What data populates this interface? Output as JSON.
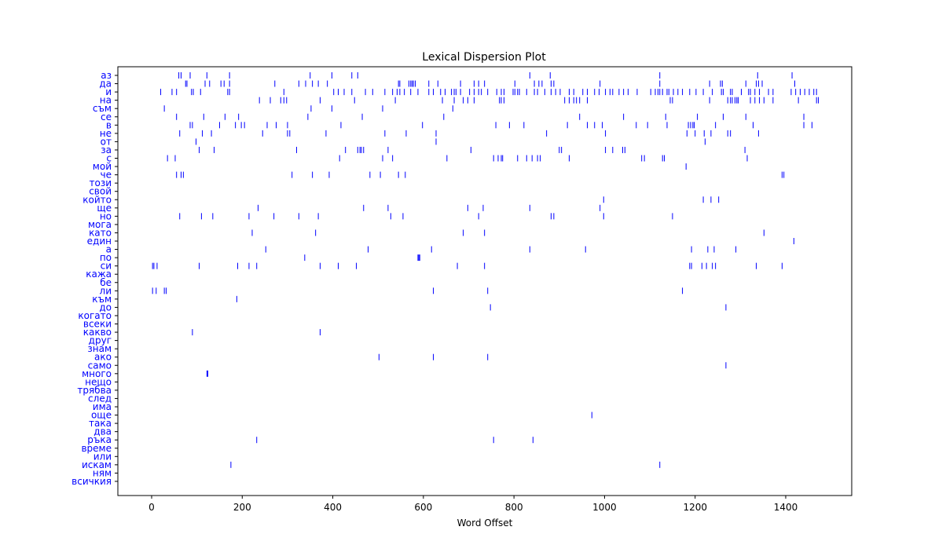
{
  "chart_data": {
    "type": "scatter",
    "title": "Lexical Dispersion Plot",
    "xlabel": "Word Offset",
    "ylabel": "",
    "xlim": [
      -75,
      1550
    ],
    "x_ticks": [
      0,
      200,
      400,
      600,
      800,
      1000,
      1200,
      1400
    ],
    "grid": false,
    "legend": "none",
    "mark_color": "#0000ff",
    "words": [
      "аз",
      "да",
      "и",
      "на",
      "съм",
      "се",
      "в",
      "не",
      "от",
      "за",
      "с",
      "мой",
      "че",
      "този",
      "свой",
      "който",
      "ще",
      "но",
      "мога",
      "като",
      "един",
      "а",
      "по",
      "си",
      "кажа",
      "бе",
      "ли",
      "към",
      "до",
      "когато",
      "всеки",
      "какво",
      "друг",
      "знам",
      "ако",
      "само",
      "много",
      "нещо",
      "трябва",
      "след",
      "има",
      "още",
      "така",
      "два",
      "ръка",
      "време",
      "или",
      "искам",
      "ням",
      "всичкия"
    ],
    "series": [
      {
        "word": "аз",
        "x": [
          60,
          65,
          85,
          122,
          172,
          350,
          398,
          442,
          455,
          835,
          880,
          1122,
          1338,
          1414
        ]
      },
      {
        "word": "да",
        "x": [
          75,
          78,
          118,
          128,
          153,
          160,
          172,
          272,
          325,
          340,
          355,
          368,
          388,
          545,
          548,
          568,
          572,
          575,
          578,
          582,
          612,
          632,
          682,
          712,
          722,
          735,
          802,
          845,
          855,
          862,
          882,
          888,
          990,
          1122,
          1232,
          1256,
          1260,
          1312,
          1335,
          1340,
          1348,
          1420
        ]
      },
      {
        "word": "и",
        "x": [
          20,
          45,
          55,
          88,
          92,
          108,
          168,
          172,
          292,
          402,
          412,
          425,
          442,
          472,
          488,
          515,
          532,
          542,
          548,
          558,
          572,
          588,
          612,
          622,
          638,
          648,
          662,
          668,
          672,
          682,
          702,
          712,
          722,
          728,
          742,
          762,
          772,
          778,
          798,
          802,
          808,
          812,
          828,
          845,
          852,
          868,
          882,
          892,
          902,
          922,
          932,
          952,
          962,
          978,
          988,
          1002,
          1012,
          1018,
          1032,
          1042,
          1052,
          1072,
          1102,
          1112,
          1118,
          1122,
          1128,
          1138,
          1142,
          1152,
          1162,
          1172,
          1188,
          1202,
          1218,
          1238,
          1258,
          1262,
          1278,
          1282,
          1302,
          1318,
          1322,
          1332,
          1342,
          1362,
          1372,
          1412,
          1422,
          1432,
          1442,
          1452,
          1462,
          1468
        ]
      },
      {
        "word": "на",
        "x": [
          238,
          262,
          285,
          292,
          298,
          372,
          448,
          538,
          642,
          668,
          688,
          698,
          712,
          768,
          772,
          778,
          912,
          922,
          932,
          938,
          945,
          962,
          1145,
          1150,
          1232,
          1272,
          1278,
          1282,
          1288,
          1292,
          1295,
          1322,
          1332,
          1342,
          1352,
          1372,
          1428,
          1468,
          1472
        ]
      },
      {
        "word": "съм",
        "x": [
          28,
          352,
          398,
          510,
          665
        ]
      },
      {
        "word": "се",
        "x": [
          55,
          115,
          162,
          192,
          345,
          465,
          645,
          945,
          1042,
          1135,
          1205,
          1262,
          1312,
          1440
        ]
      },
      {
        "word": "в",
        "x": [
          85,
          90,
          150,
          185,
          198,
          205,
          255,
          275,
          300,
          418,
          598,
          760,
          790,
          822,
          918,
          962,
          978,
          995,
          1070,
          1095,
          1138,
          1185,
          1190,
          1195,
          1198,
          1245,
          1328,
          1440,
          1458
        ]
      },
      {
        "word": "не",
        "x": [
          62,
          112,
          132,
          245,
          300,
          305,
          385,
          515,
          562,
          628,
          872,
          1002,
          1182,
          1200,
          1220,
          1235,
          1272,
          1278,
          1340
        ]
      },
      {
        "word": "от",
        "x": [
          98,
          628,
          1222
        ]
      },
      {
        "word": "за",
        "x": [
          105,
          138,
          320,
          428,
          455,
          460,
          463,
          468,
          522,
          705,
          900,
          905,
          1002,
          1018,
          1040,
          1045,
          1310
        ]
      },
      {
        "word": "с",
        "x": [
          35,
          52,
          415,
          510,
          532,
          652,
          755,
          765,
          772,
          775,
          808,
          828,
          840,
          852,
          858,
          922,
          1082,
          1088,
          1128,
          1132,
          1315
        ]
      },
      {
        "word": "мой",
        "x": [
          1180
        ]
      },
      {
        "word": "че",
        "x": [
          55,
          65,
          70,
          310,
          355,
          392,
          482,
          505,
          545,
          560,
          1392,
          1396
        ]
      },
      {
        "word": "този",
        "x": []
      },
      {
        "word": "свой",
        "x": []
      },
      {
        "word": "който",
        "x": [
          998,
          1218,
          1235,
          1252
        ]
      },
      {
        "word": "ще",
        "x": [
          235,
          468,
          522,
          698,
          732,
          835,
          990
        ]
      },
      {
        "word": "но",
        "x": [
          62,
          110,
          135,
          215,
          270,
          325,
          368,
          528,
          555,
          722,
          882,
          888,
          998,
          1150
        ]
      },
      {
        "word": "мога",
        "x": []
      },
      {
        "word": "като",
        "x": [
          222,
          362,
          688,
          735,
          1352
        ]
      },
      {
        "word": "един",
        "x": [
          1418
        ]
      },
      {
        "word": "а",
        "x": [
          252,
          478,
          618,
          835,
          958,
          1192,
          1228,
          1242,
          1290
        ]
      },
      {
        "word": "по",
        "x": [
          338,
          588,
          590,
          592
        ]
      },
      {
        "word": "си",
        "x": [
          2,
          5,
          12,
          105,
          190,
          215,
          232,
          372,
          412,
          452,
          675,
          735,
          1188,
          1192,
          1215,
          1225,
          1238,
          1245,
          1335,
          1392
        ]
      },
      {
        "word": "кажа",
        "x": []
      },
      {
        "word": "бе",
        "x": []
      },
      {
        "word": "ли",
        "x": [
          2,
          10,
          28,
          32,
          622,
          742,
          1172
        ]
      },
      {
        "word": "към",
        "x": [
          188
        ]
      },
      {
        "word": "до",
        "x": [
          748,
          1268
        ]
      },
      {
        "word": "когато",
        "x": []
      },
      {
        "word": "всеки",
        "x": []
      },
      {
        "word": "какво",
        "x": [
          90,
          372
        ]
      },
      {
        "word": "друг",
        "x": []
      },
      {
        "word": "знам",
        "x": []
      },
      {
        "word": "ако",
        "x": [
          502,
          622,
          742
        ]
      },
      {
        "word": "само",
        "x": [
          1268
        ]
      },
      {
        "word": "много",
        "x": [
          122,
          124
        ]
      },
      {
        "word": "нещо",
        "x": []
      },
      {
        "word": "трябва",
        "x": []
      },
      {
        "word": "след",
        "x": []
      },
      {
        "word": "има",
        "x": []
      },
      {
        "word": "още",
        "x": [
          972
        ]
      },
      {
        "word": "така",
        "x": []
      },
      {
        "word": "два",
        "x": []
      },
      {
        "word": "ръка",
        "x": [
          232,
          755,
          842
        ]
      },
      {
        "word": "време",
        "x": []
      },
      {
        "word": "или",
        "x": []
      },
      {
        "word": "искам",
        "x": [
          175,
          1122
        ]
      },
      {
        "word": "ням",
        "x": []
      },
      {
        "word": "всичкия",
        "x": []
      }
    ]
  }
}
